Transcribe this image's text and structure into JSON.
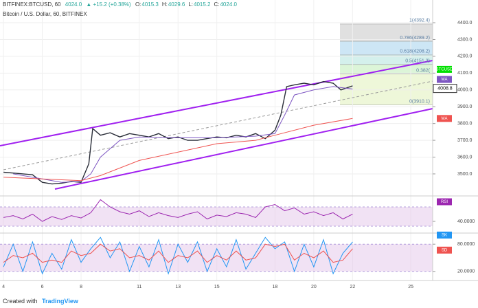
{
  "header": {
    "symbol": "BITFINEX:BTCUSD, 60",
    "price": "4024.0",
    "change": "▲ +15.2 (+0.38%)",
    "ohlc": [
      {
        "key": "O:",
        "value": "4015.3"
      },
      {
        "key": "H:",
        "value": "4029.6"
      },
      {
        "key": "L:",
        "value": "4015.2"
      },
      {
        "key": "C:",
        "value": "4024.0"
      }
    ]
  },
  "footer": {
    "text": "Created with",
    "brand": "TradingView"
  },
  "chart_data": [
    {
      "type": "line",
      "title": "Bitcoin / U.S. Dollar, 60, BITFINEX",
      "xlim": [
        3.82,
        26.13
      ],
      "xticks": [
        4,
        6,
        8,
        11,
        13,
        15,
        18,
        20,
        22,
        25
      ],
      "ylim": [
        3377,
        4527
      ],
      "yticks": [
        {
          "value": 3500,
          "label": "3500.0"
        },
        {
          "value": 3600,
          "label": "3600.0"
        },
        {
          "value": 3700,
          "label": "3700.0"
        },
        {
          "value": 3800,
          "label": "3800.0"
        },
        {
          "value": 3900,
          "label": "3900.0"
        },
        {
          "value": 4000,
          "label": "4000.0"
        },
        {
          "value": 4100,
          "label": "4100.0"
        },
        {
          "value": 4200,
          "label": "4200.0"
        },
        {
          "value": 4300,
          "label": "4300.0"
        },
        {
          "value": 4400,
          "label": "4400.0"
        }
      ],
      "grid": true,
      "series": [
        {
          "name": "BTCUSD",
          "color": "#2a2e39",
          "x": [
            4,
            4.5,
            5,
            5.5,
            6,
            6.5,
            7,
            7.5,
            8,
            8.4,
            8.6,
            9,
            9.5,
            10,
            10.5,
            11,
            11.5,
            12,
            12.5,
            13,
            13.5,
            14,
            14.5,
            15,
            15.5,
            16,
            16.5,
            17,
            17.5,
            18,
            18.3,
            18.6,
            19,
            19.5,
            20,
            20.5,
            21,
            21.4,
            22
          ],
          "values": [
            3510,
            3505,
            3500,
            3495,
            3450,
            3440,
            3445,
            3455,
            3450,
            3560,
            3770,
            3730,
            3745,
            3720,
            3740,
            3730,
            3720,
            3740,
            3710,
            3720,
            3700,
            3700,
            3710,
            3720,
            3715,
            3730,
            3720,
            3740,
            3710,
            3760,
            3850,
            4020,
            4030,
            4040,
            4030,
            4050,
            4040,
            4000,
            4024
          ]
        },
        {
          "name": "MA",
          "color": "#7e57c2",
          "x": [
            4.5,
            6,
            7,
            8,
            8.5,
            9,
            10,
            11,
            13,
            15,
            17,
            18,
            18.5,
            19,
            20,
            21,
            22
          ],
          "values": [
            3500,
            3470,
            3450,
            3455,
            3500,
            3600,
            3700,
            3720,
            3715,
            3715,
            3725,
            3740,
            3850,
            3970,
            4000,
            4020,
            4005
          ]
        },
        {
          "name": "MA",
          "color": "#ef5350",
          "x": [
            4,
            6,
            8,
            9,
            11,
            13,
            15,
            17,
            18,
            20,
            22
          ],
          "values": [
            3480,
            3470,
            3460,
            3490,
            3580,
            3630,
            3680,
            3700,
            3730,
            3790,
            3830
          ]
        }
      ],
      "fib": [
        {
          "value": 4392.4,
          "label": "1(4392.4)"
        },
        {
          "value": 4289.2,
          "label": "0.786(4289.2)"
        },
        {
          "value": 4208.2,
          "label": "0.618(4208.2)"
        },
        {
          "value": 4151.3,
          "label": "0.5(4151.3)"
        },
        {
          "value": 4094.3,
          "label": "0.382("
        },
        {
          "value": 3910.1,
          "label": "0(3910.1)"
        }
      ],
      "price_tag": 4008.8
    },
    {
      "type": "line",
      "ylim": [
        20,
        90
      ],
      "yticks": [
        {
          "value": 40,
          "label": "40.0000"
        }
      ],
      "band": [
        30,
        70
      ],
      "series": [
        {
          "name": "RSI",
          "color": "#9c27b0",
          "x": [
            4,
            4.5,
            5,
            5.5,
            6,
            6.5,
            7,
            7.5,
            8,
            8.5,
            9,
            9.5,
            10,
            10.5,
            11,
            11.5,
            12,
            12.5,
            13,
            13.5,
            14,
            14.5,
            15,
            15.5,
            16,
            16.5,
            17,
            17.5,
            18,
            18.5,
            19,
            19.5,
            20,
            20.5,
            21,
            21.5,
            22
          ],
          "values": [
            48,
            52,
            45,
            55,
            40,
            50,
            44,
            52,
            47,
            58,
            85,
            70,
            60,
            55,
            62,
            50,
            58,
            52,
            48,
            55,
            60,
            45,
            53,
            50,
            58,
            55,
            48,
            70,
            75,
            62,
            68,
            55,
            60,
            52,
            58,
            45,
            55
          ]
        }
      ]
    },
    {
      "type": "line",
      "ylim": [
        0,
        100
      ],
      "yticks": [
        {
          "value": 20,
          "label": "20.0000"
        },
        {
          "value": 80,
          "label": "80.0000"
        }
      ],
      "band": [
        20,
        80
      ],
      "series": [
        {
          "name": "SK",
          "color": "#2196f3",
          "x": [
            4,
            4.5,
            5,
            5.5,
            6,
            6.5,
            7,
            7.5,
            8,
            8.5,
            9,
            9.5,
            10,
            10.5,
            11,
            11.5,
            12,
            12.5,
            13,
            13.5,
            14,
            14.5,
            15,
            15.5,
            16,
            16.5,
            17,
            17.5,
            18,
            18.5,
            19,
            19.5,
            20,
            20.5,
            21,
            21.5,
            22
          ],
          "values": [
            30,
            80,
            20,
            85,
            15,
            60,
            25,
            90,
            40,
            70,
            95,
            50,
            85,
            20,
            75,
            30,
            90,
            15,
            80,
            40,
            85,
            20,
            70,
            30,
            90,
            25,
            60,
            95,
            70,
            85,
            20,
            80,
            30,
            90,
            15,
            60,
            85
          ]
        },
        {
          "name": "SD",
          "color": "#ef5350",
          "x": [
            4,
            4.5,
            5,
            5.5,
            6,
            6.5,
            7,
            7.5,
            8,
            8.5,
            9,
            9.5,
            10,
            10.5,
            11,
            11.5,
            12,
            12.5,
            13,
            13.5,
            14,
            14.5,
            15,
            15.5,
            16,
            16.5,
            17,
            17.5,
            18,
            18.5,
            19,
            19.5,
            20,
            20.5,
            21,
            21.5,
            22
          ],
          "values": [
            40,
            55,
            50,
            60,
            40,
            45,
            40,
            65,
            55,
            60,
            80,
            65,
            70,
            50,
            55,
            45,
            65,
            40,
            55,
            50,
            65,
            40,
            55,
            45,
            65,
            45,
            50,
            80,
            75,
            80,
            45,
            60,
            50,
            65,
            40,
            45,
            70
          ]
        }
      ]
    }
  ]
}
